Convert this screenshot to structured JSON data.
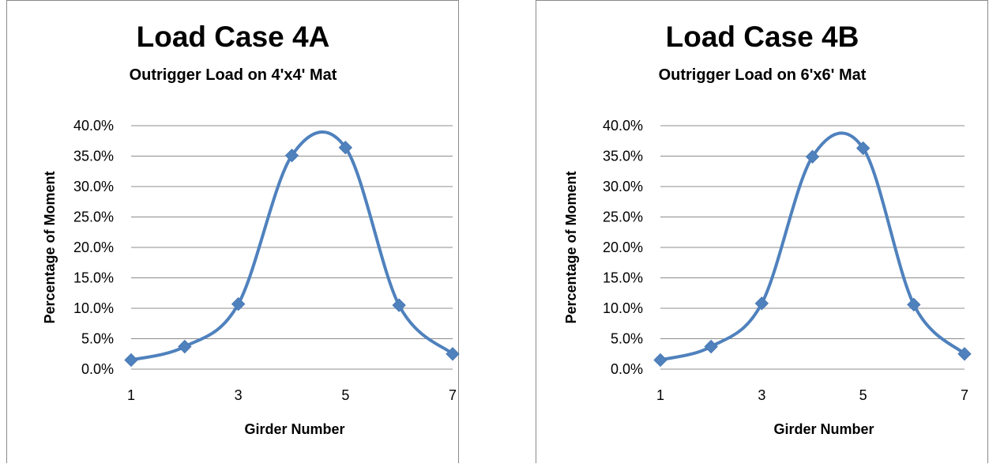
{
  "chart_data": [
    {
      "type": "line",
      "title": "Load Case 4A",
      "subtitle": "Outrigger Load on 4'x4' Mat",
      "xlabel": "Girder Number",
      "ylabel": "Percentage of Moment",
      "x": [
        1,
        2,
        3,
        4,
        5,
        6,
        7
      ],
      "series": [
        {
          "values": [
            1.5,
            3.7,
            10.7,
            35.1,
            36.4,
            10.5,
            2.5
          ]
        }
      ],
      "xlim": [
        1,
        7
      ],
      "xticks": [
        "1",
        "3",
        "5",
        "7"
      ],
      "ylim": [
        0,
        40
      ],
      "yticks": [
        "0.0%",
        "5.0%",
        "10.0%",
        "15.0%",
        "20.0%",
        "25.0%",
        "30.0%",
        "35.0%",
        "40.0%"
      ],
      "grid": "horizontal",
      "line": "smoothed",
      "marker": "diamond",
      "color": "#4f81bd"
    },
    {
      "type": "line",
      "title": "Load Case 4B",
      "subtitle": "Outrigger Load on 6'x6' Mat",
      "xlabel": "Girder Number",
      "ylabel": "Percentage of Moment",
      "x": [
        1,
        2,
        3,
        4,
        5,
        6,
        7
      ],
      "series": [
        {
          "values": [
            1.5,
            3.7,
            10.8,
            34.9,
            36.3,
            10.6,
            2.5
          ]
        }
      ],
      "xlim": [
        1,
        7
      ],
      "xticks": [
        "1",
        "3",
        "5",
        "7"
      ],
      "ylim": [
        0,
        40
      ],
      "yticks": [
        "0.0%",
        "5.0%",
        "10.0%",
        "15.0%",
        "20.0%",
        "25.0%",
        "30.0%",
        "35.0%",
        "40.0%"
      ],
      "grid": "horizontal",
      "line": "smoothed",
      "marker": "diamond",
      "color": "#4f81bd"
    }
  ]
}
